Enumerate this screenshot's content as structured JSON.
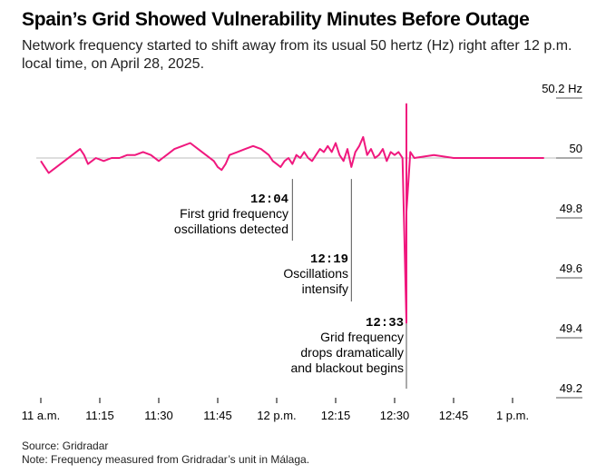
{
  "title": "Spain’s Grid Showed Vulnerability Minutes Before Outage",
  "subtitle": "Network frequency started to shift away from its usual 50 hertz (Hz) right after 12 p.m. local time, on April 28, 2025.",
  "source": "Source: Gridradar",
  "note": "Note: Frequency measured from Gridradar’s unit in Málaga.",
  "colors": {
    "line": "#f0187e",
    "baseline": "#bdbdbd",
    "annotation_line": "#555555"
  },
  "chart_data": {
    "type": "line",
    "title": "Spain’s Grid Showed Vulnerability Minutes Before Outage",
    "ylabel": "Hz",
    "ylim": [
      49.2,
      50.2
    ],
    "xlim": [
      "11:00",
      "13:10"
    ],
    "y_ticks": [
      {
        "value": 50.2,
        "label": "50.2 Hz"
      },
      {
        "value": 50.0,
        "label": "50"
      },
      {
        "value": 49.8,
        "label": "49.8"
      },
      {
        "value": 49.6,
        "label": "49.6"
      },
      {
        "value": 49.4,
        "label": "49.4"
      },
      {
        "value": 49.2,
        "label": "49.2"
      }
    ],
    "x_ticks": [
      {
        "time": "11:00",
        "label": "11 a.m."
      },
      {
        "time": "11:15",
        "label": "11:15"
      },
      {
        "time": "11:30",
        "label": "11:30"
      },
      {
        "time": "11:45",
        "label": "11:45"
      },
      {
        "time": "12:00",
        "label": "12 p.m."
      },
      {
        "time": "12:15",
        "label": "12:15"
      },
      {
        "time": "12:30",
        "label": "12:30"
      },
      {
        "time": "12:45",
        "label": "12:45"
      },
      {
        "time": "13:00",
        "label": "1 p.m."
      }
    ],
    "series": [
      {
        "points": [
          [
            "11:00",
            49.99
          ],
          [
            "11:01",
            49.97
          ],
          [
            "11:02",
            49.95
          ],
          [
            "11:03",
            49.96
          ],
          [
            "11:04",
            49.97
          ],
          [
            "11:05",
            49.98
          ],
          [
            "11:06",
            49.99
          ],
          [
            "11:08",
            50.01
          ],
          [
            "11:10",
            50.03
          ],
          [
            "11:11",
            50.01
          ],
          [
            "11:12",
            49.98
          ],
          [
            "11:13",
            49.99
          ],
          [
            "11:14",
            50.0
          ],
          [
            "11:16",
            49.99
          ],
          [
            "11:18",
            50.0
          ],
          [
            "11:20",
            50.0
          ],
          [
            "11:22",
            50.01
          ],
          [
            "11:24",
            50.01
          ],
          [
            "11:26",
            50.02
          ],
          [
            "11:28",
            50.01
          ],
          [
            "11:30",
            49.99
          ],
          [
            "11:31",
            50.0
          ],
          [
            "11:32",
            50.01
          ],
          [
            "11:34",
            50.03
          ],
          [
            "11:36",
            50.04
          ],
          [
            "11:38",
            50.05
          ],
          [
            "11:40",
            50.03
          ],
          [
            "11:42",
            50.01
          ],
          [
            "11:44",
            49.99
          ],
          [
            "11:45",
            49.97
          ],
          [
            "11:46",
            49.96
          ],
          [
            "11:47",
            49.98
          ],
          [
            "11:48",
            50.01
          ],
          [
            "11:50",
            50.02
          ],
          [
            "11:52",
            50.03
          ],
          [
            "11:54",
            50.04
          ],
          [
            "11:56",
            50.03
          ],
          [
            "11:58",
            50.01
          ],
          [
            "11:59",
            49.99
          ],
          [
            "12:00",
            49.98
          ],
          [
            "12:01",
            49.97
          ],
          [
            "12:02",
            49.99
          ],
          [
            "12:03",
            50.0
          ],
          [
            "12:04",
            49.98
          ],
          [
            "12:05",
            50.01
          ],
          [
            "12:06",
            50.0
          ],
          [
            "12:07",
            50.02
          ],
          [
            "12:08",
            50.0
          ],
          [
            "12:09",
            49.99
          ],
          [
            "12:10",
            50.01
          ],
          [
            "12:11",
            50.03
          ],
          [
            "12:12",
            50.02
          ],
          [
            "12:13",
            50.04
          ],
          [
            "12:14",
            50.02
          ],
          [
            "12:15",
            50.05
          ],
          [
            "12:16",
            50.01
          ],
          [
            "12:17",
            49.99
          ],
          [
            "12:18",
            50.03
          ],
          [
            "12:19",
            49.97
          ],
          [
            "12:20",
            50.02
          ],
          [
            "12:21",
            50.04
          ],
          [
            "12:22",
            50.07
          ],
          [
            "12:23",
            50.01
          ],
          [
            "12:24",
            50.03
          ],
          [
            "12:25",
            50.0
          ],
          [
            "12:26",
            50.01
          ],
          [
            "12:27",
            50.03
          ],
          [
            "12:28",
            49.99
          ],
          [
            "12:29",
            50.02
          ],
          [
            "12:30",
            50.01
          ],
          [
            "12:31",
            50.02
          ],
          [
            "12:32",
            50.0
          ],
          [
            "12:33",
            49.45
          ],
          [
            "12:33",
            50.18
          ],
          [
            "12:33",
            49.82
          ],
          [
            "12:34",
            50.02
          ],
          [
            "12:35",
            50.0
          ],
          [
            "12:40",
            50.01
          ],
          [
            "12:45",
            50.0
          ],
          [
            "12:50",
            50.0
          ],
          [
            "12:55",
            50.0
          ],
          [
            "13:00",
            50.0
          ],
          [
            "13:05",
            50.0
          ],
          [
            "13:08",
            50.0
          ]
        ]
      }
    ],
    "annotations": [
      {
        "time": "12:04",
        "label_time": "12:04",
        "lines": [
          "First grid frequency",
          "oscillations detected"
        ]
      },
      {
        "time": "12:19",
        "label_time": "12:19",
        "lines": [
          "Oscillations",
          "intensify"
        ]
      },
      {
        "time": "12:33",
        "label_time": "12:33",
        "lines": [
          "Grid frequency",
          "drops dramatically",
          "and blackout begins"
        ]
      }
    ]
  }
}
